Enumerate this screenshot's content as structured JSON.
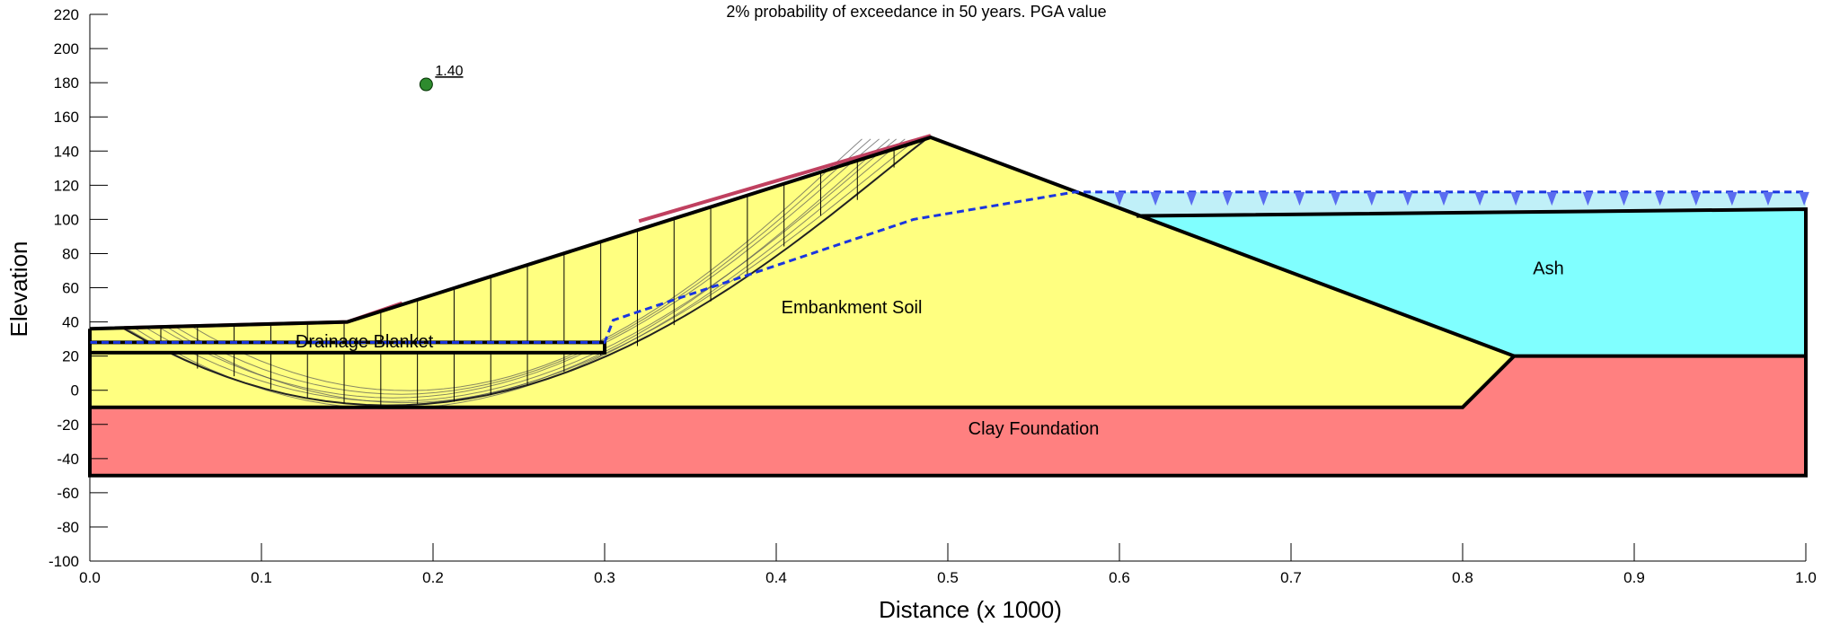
{
  "chart_data": {
    "type": "diagram",
    "title": "2% probability of exceedance in 50 years. PGA value",
    "xlabel": "Distance (x  1000)",
    "ylabel": "Elevation",
    "xlim": [
      0.0,
      1.0
    ],
    "ylim": [
      -100,
      220
    ],
    "x_ticks": [
      "0.0",
      "0.1",
      "0.2",
      "0.3",
      "0.4",
      "0.5",
      "0.6",
      "0.7",
      "0.8",
      "0.9",
      "1.0"
    ],
    "y_ticks": [
      "220",
      "200",
      "180",
      "160",
      "140",
      "120",
      "100",
      "80",
      "60",
      "40",
      "20",
      "0",
      "-20",
      "-40",
      "-60",
      "-80",
      "-100"
    ],
    "factor_of_safety": {
      "label": "1.40",
      "x": 0.196,
      "y": 179
    },
    "materials": [
      {
        "name": "Embankment Soil",
        "color": "#ffff80",
        "label_at": [
          0.444,
          45
        ]
      },
      {
        "name": "Ash",
        "color": "#80ffff",
        "label_at": [
          0.85,
          68
        ]
      },
      {
        "name": "Clay Foundation",
        "color": "#ff8080",
        "label_at": [
          0.55,
          -26
        ]
      },
      {
        "name": "Drainage Blanket",
        "color": "#ffff80",
        "label_at": [
          0.16,
          25
        ]
      }
    ],
    "water_color": "#c0f0f8",
    "piezometric_line_color": "#1a35e0",
    "slip_surface_color": "#c04060"
  }
}
